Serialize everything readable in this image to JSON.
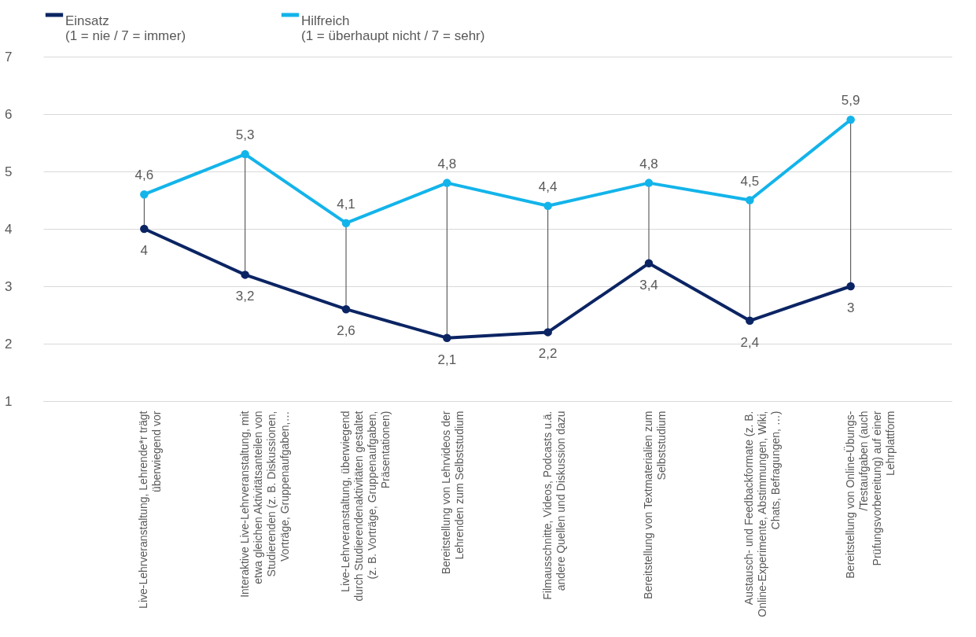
{
  "chart_data": {
    "type": "line",
    "categories": [
      "Live-Lehrveranstaltung, Lehrende*r trägt überwiegend vor",
      "Interaktive Live-Lehrveranstaltung, mit etwa gleichen Aktivitätsanteilen von Studierenden (z. B. Diskussionen, Vorträge, Gruppenaufgaben,…",
      "Live-Lehrveranstaltung, überwiegend durch Studierendenaktivitäten gestaltet (z. B. Vorträge, Gruppenaufgaben, Präsentationen)",
      "Bereitstellung von Lehrvideos der Lehrenden zum Selbststudium",
      "Filmausschnitte, Videos, Podcasts u.ä. andere Quellen und Diskussion dazu",
      "Bereitstellung von Textmaterialien zum Selbststudium",
      "Austausch- und Feedbackformate (z. B. Online-Experimente, Abstimmungen, Wiki, Chats, Befragungen, …)",
      "Bereitstellung von Online-Übungs- /Testaufgaben (auch Prüfungsvorbereitung) auf einer Lehrplattform"
    ],
    "series": [
      {
        "name": "Einsatz\n(1 = nie / 7 = immer)",
        "color": "#0b2463",
        "values": [
          4,
          3.2,
          2.6,
          2.1,
          2.2,
          3.4,
          2.4,
          3
        ],
        "value_labels": [
          "4",
          "3,2",
          "2,6",
          "2,1",
          "2,2",
          "3,4",
          "2,4",
          "3"
        ]
      },
      {
        "name": "Hilfreich\n(1 = überhaupt nicht / 7 = sehr)",
        "color": "#13b4ea",
        "values": [
          4.6,
          5.3,
          4.1,
          4.8,
          4.4,
          4.8,
          4.5,
          5.9
        ],
        "value_labels": [
          "4,6",
          "5,3",
          "4,1",
          "4,8",
          "4,4",
          "4,8",
          "4,5",
          "5,9"
        ]
      }
    ],
    "ylim": [
      1,
      7
    ],
    "yticks": [
      1,
      2,
      3,
      4,
      5,
      6,
      7
    ],
    "grid": "y",
    "legend": "top",
    "marker": "circle",
    "line_style": "solid"
  }
}
